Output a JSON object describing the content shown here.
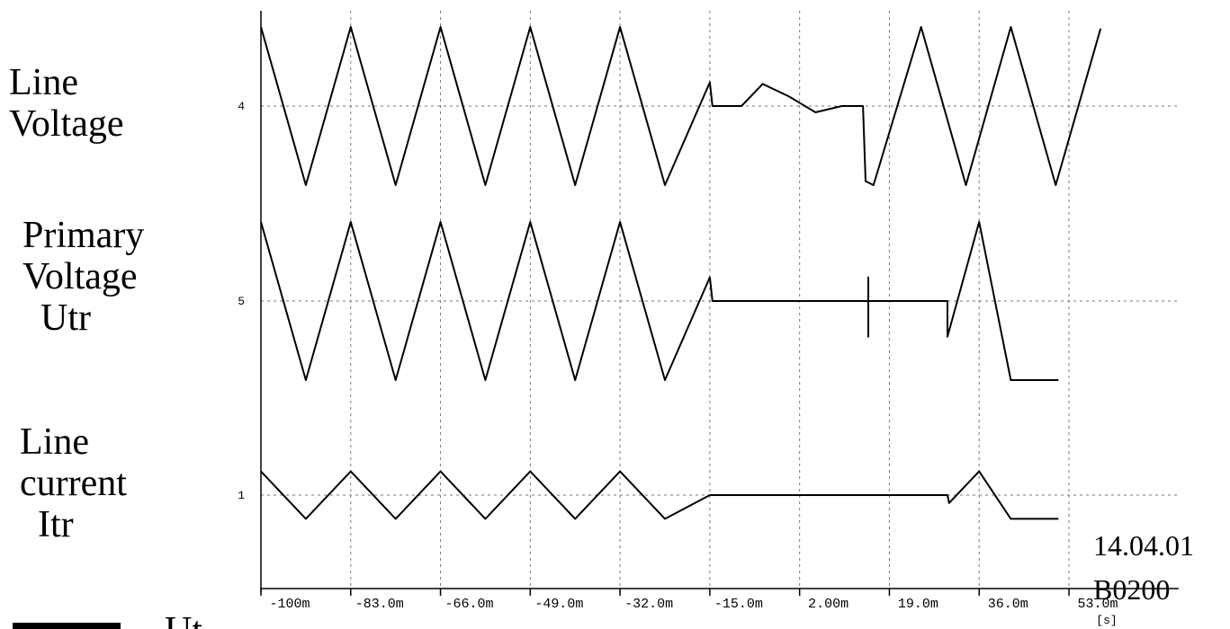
{
  "chart_data": {
    "type": "line",
    "x_tick_labels": [
      "-100m",
      "-83.0m",
      "-66.0m",
      "-49.0m",
      "-32.0m",
      "-15.0m",
      "2.00m",
      "19.0m",
      "36.0m",
      "53.0m"
    ],
    "x_tick_values": [
      -100,
      -83,
      -66,
      -49,
      -32,
      -15,
      2,
      19,
      36,
      53
    ],
    "x_unit": "[s]",
    "xlim": [
      -100,
      60
    ],
    "grid": true,
    "traces": [
      {
        "label_lines": [
          "Line",
          "Voltage"
        ],
        "channel": "4",
        "description_values": {
          "x": [
            -100,
            -91.5,
            -83,
            -74.5,
            -66,
            -57.5,
            -49,
            -40.5,
            -32,
            -23.5,
            -15,
            -14.5,
            -11,
            -9,
            -5,
            0,
            5,
            10,
            14,
            14.5,
            16,
            25,
            33.5,
            42,
            50.5,
            59
          ],
          "y": [
            1,
            -1,
            1,
            -1,
            1,
            -1,
            1,
            -1,
            1,
            -1,
            0.3,
            0,
            0,
            0,
            0.28,
            0.12,
            -0.08,
            0,
            0,
            -0.95,
            -1,
            1,
            -1,
            1,
            -1,
            0.98
          ]
        }
      },
      {
        "label_lines": [
          "Primary",
          "Voltage",
          "Utr"
        ],
        "channel": "5",
        "description_values": {
          "x": [
            -100,
            -91.5,
            -83,
            -74.5,
            -66,
            -57.5,
            -49,
            -40.5,
            -32,
            -23.5,
            -15,
            -14.5,
            -11,
            -9,
            15,
            15,
            15,
            15,
            30,
            30,
            36,
            42,
            51
          ],
          "y": [
            1,
            -1,
            1,
            -1,
            1,
            -1,
            1,
            -1,
            1,
            -1,
            0.3,
            0,
            0,
            0,
            0,
            0.3,
            -0.45,
            0,
            0,
            -0.45,
            1,
            -1,
            -1
          ]
        }
      },
      {
        "label_lines": [
          "Line",
          "current",
          "Itr"
        ],
        "channel": "1",
        "description_values": {
          "x": [
            -100,
            -91.5,
            -83,
            -74.5,
            -66,
            -57.5,
            -49,
            -40.5,
            -32,
            -23.5,
            -15,
            -14.5,
            -11,
            30,
            30.3,
            36,
            42,
            51
          ],
          "y": [
            0.3,
            -0.3,
            0.3,
            -0.3,
            0.3,
            -0.3,
            0.3,
            -0.3,
            0.3,
            -0.3,
            0,
            0,
            0,
            0,
            -0.1,
            0.3,
            -0.3,
            -0.3
          ]
        }
      }
    ],
    "stamp": [
      "14.04.01",
      "B0200"
    ],
    "legend_partial": "Ut"
  }
}
